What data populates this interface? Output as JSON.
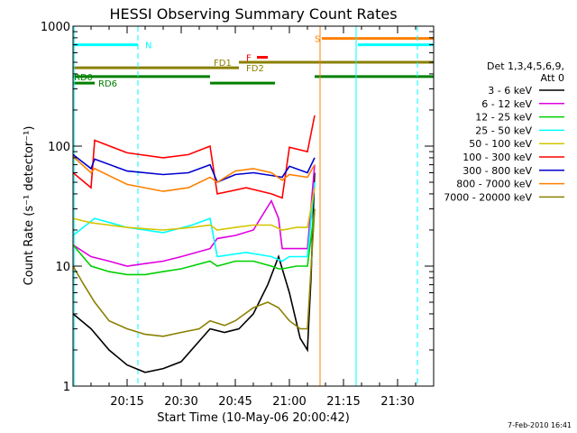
{
  "chart_data": {
    "type": "line",
    "title": "HESSI Observing Summary Count Rates",
    "xlabel": "Start Time (10-May-06 20:00:42)",
    "ylabel": "Count Rate (s⁻¹ detector⁻¹)",
    "y_scale": "log",
    "ylim": [
      1,
      1000
    ],
    "xlim_minutes": [
      0,
      100
    ],
    "x_ticks": [
      {
        "m": 15,
        "label": "20:15"
      },
      {
        "m": 30,
        "label": "20:30"
      },
      {
        "m": 45,
        "label": "20:45"
      },
      {
        "m": 60,
        "label": "21:00"
      },
      {
        "m": 75,
        "label": "21:15"
      },
      {
        "m": 90,
        "label": "21:30"
      }
    ],
    "y_ticks": [
      {
        "v": 1,
        "label": "1"
      },
      {
        "v": 10,
        "label": "10"
      },
      {
        "v": 100,
        "label": "100"
      },
      {
        "v": 1000,
        "label": "1000"
      }
    ],
    "legend_title": [
      "Det 1,3,4,5,6,9,",
      "Att 0"
    ],
    "legend_position": "right",
    "series": [
      {
        "name": "3 - 6 keV",
        "color": "#000000",
        "segments": [
          [
            [
              0,
              4
            ],
            [
              5,
              3
            ],
            [
              10,
              2
            ],
            [
              15,
              1.5
            ],
            [
              20,
              1.3
            ],
            [
              25,
              1.4
            ],
            [
              30,
              1.6
            ],
            [
              38,
              3
            ],
            [
              42,
              2.8
            ],
            [
              46,
              3
            ],
            [
              50,
              4
            ],
            [
              54,
              7
            ],
            [
              57,
              12
            ],
            [
              60,
              6
            ],
            [
              63,
              2.5
            ],
            [
              65,
              2
            ],
            [
              66,
              8
            ],
            [
              67,
              60
            ]
          ]
        ]
      },
      {
        "name": "6 - 12 keV",
        "color": "#e000e0",
        "segments": [
          [
            [
              0,
              15
            ],
            [
              5,
              12
            ],
            [
              10,
              11
            ],
            [
              15,
              10
            ],
            [
              20,
              10.5
            ],
            [
              25,
              11
            ],
            [
              30,
              12
            ],
            [
              38,
              14
            ],
            [
              40,
              17
            ],
            [
              45,
              18
            ],
            [
              50,
              20
            ],
            [
              53,
              28
            ],
            [
              55,
              35
            ],
            [
              57,
              25
            ],
            [
              58,
              14
            ],
            [
              60,
              14
            ],
            [
              65,
              14
            ],
            [
              67,
              70
            ]
          ]
        ]
      },
      {
        "name": "12 - 25 keV",
        "color": "#00d000",
        "segments": [
          [
            [
              0,
              15
            ],
            [
              5,
              10
            ],
            [
              10,
              9
            ],
            [
              15,
              8.5
            ],
            [
              20,
              8.5
            ],
            [
              25,
              9
            ],
            [
              30,
              9.5
            ],
            [
              38,
              11
            ],
            [
              40,
              10
            ],
            [
              45,
              11
            ],
            [
              50,
              11
            ],
            [
              55,
              10
            ],
            [
              57,
              9.5
            ],
            [
              58,
              9.5
            ],
            [
              62,
              10
            ],
            [
              65,
              10
            ],
            [
              67,
              30
            ]
          ]
        ]
      },
      {
        "name": "25 - 50 keV",
        "color": "#00ffff",
        "segments": [
          [
            [
              0,
              18
            ],
            [
              6,
              25
            ],
            [
              15,
              21
            ],
            [
              25,
              19
            ],
            [
              33,
              22
            ],
            [
              38,
              25
            ],
            [
              40,
              12
            ],
            [
              48,
              13
            ],
            [
              55,
              12
            ],
            [
              58,
              11
            ],
            [
              60,
              12
            ],
            [
              65,
              12
            ],
            [
              67,
              50
            ]
          ]
        ]
      },
      {
        "name": "50 - 100 keV",
        "color": "#d4c400",
        "segments": [
          [
            [
              0,
              25
            ],
            [
              5,
              23
            ],
            [
              10,
              22
            ],
            [
              15,
              21
            ],
            [
              25,
              20
            ],
            [
              33,
              21
            ],
            [
              38,
              22
            ],
            [
              40,
              20
            ],
            [
              45,
              21
            ],
            [
              50,
              22
            ],
            [
              55,
              22
            ],
            [
              58,
              20
            ],
            [
              62,
              21
            ],
            [
              65,
              21
            ],
            [
              67,
              45
            ]
          ]
        ]
      },
      {
        "name": "100 - 300 keV",
        "color": "#ff0000",
        "segments": [
          [
            [
              0,
              60
            ],
            [
              5,
              45
            ],
            [
              6,
              112
            ],
            [
              15,
              88
            ],
            [
              25,
              80
            ],
            [
              32,
              85
            ],
            [
              38,
              100
            ],
            [
              40,
              40
            ],
            [
              48,
              45
            ],
            [
              55,
              40
            ],
            [
              58,
              37
            ],
            [
              60,
              98
            ],
            [
              65,
              90
            ],
            [
              67,
              180
            ]
          ]
        ]
      },
      {
        "name": "300 - 800 keV",
        "color": "#0000d0",
        "segments": [
          [
            [
              0,
              85
            ],
            [
              5,
              65
            ],
            [
              6,
              78
            ],
            [
              15,
              62
            ],
            [
              25,
              58
            ],
            [
              32,
              60
            ],
            [
              38,
              70
            ],
            [
              40,
              50
            ],
            [
              45,
              58
            ],
            [
              50,
              60
            ],
            [
              55,
              57
            ],
            [
              58,
              55
            ],
            [
              60,
              68
            ],
            [
              65,
              60
            ],
            [
              67,
              80
            ]
          ]
        ]
      },
      {
        "name": "800 - 7000 keV",
        "color": "#ff8000",
        "segments": [
          [
            [
              0,
              82
            ],
            [
              5,
              60
            ],
            [
              6,
              65
            ],
            [
              15,
              48
            ],
            [
              25,
              42
            ],
            [
              32,
              45
            ],
            [
              38,
              55
            ],
            [
              40,
              50
            ],
            [
              45,
              62
            ],
            [
              50,
              65
            ],
            [
              55,
              60
            ],
            [
              58,
              52
            ],
            [
              60,
              58
            ],
            [
              65,
              55
            ],
            [
              67,
              70
            ]
          ]
        ]
      },
      {
        "name": "7000 - 20000 keV",
        "color": "#8a8000",
        "segments": [
          [
            [
              0,
              10
            ],
            [
              3,
              7
            ],
            [
              6,
              5
            ],
            [
              10,
              3.5
            ],
            [
              15,
              3
            ],
            [
              20,
              2.7
            ],
            [
              25,
              2.6
            ],
            [
              30,
              2.8
            ],
            [
              35,
              3
            ],
            [
              38,
              3.5
            ],
            [
              42,
              3.2
            ],
            [
              45,
              3.5
            ],
            [
              50,
              4.5
            ],
            [
              54,
              5
            ],
            [
              57,
              4.5
            ],
            [
              60,
              3.5
            ],
            [
              63,
              3
            ],
            [
              65,
              3
            ],
            [
              67,
              30
            ]
          ]
        ]
      }
    ],
    "flag_bars": [
      {
        "label": "N",
        "color": "#00ffff",
        "y_value": 700,
        "segments": [
          [
            0,
            18
          ],
          [
            79,
            100
          ]
        ]
      },
      {
        "label": "S",
        "color": "#ff8000",
        "y_value": 790,
        "segments": [
          [
            69,
            100
          ]
        ]
      },
      {
        "label": "F",
        "color": "#ff0000",
        "y_value": 550,
        "segments": [
          [
            51,
            54
          ]
        ]
      },
      {
        "label": "FD1",
        "color": "#8a8000",
        "y_value": 500,
        "segments": [
          [
            46,
            100
          ]
        ]
      },
      {
        "label": "FD2",
        "color": "#8a8000",
        "y_value": 450,
        "segments": [
          [
            0,
            46
          ]
        ]
      },
      {
        "label": "RD0",
        "color": "#008000",
        "y_value": 380,
        "segments": [
          [
            0,
            38
          ],
          [
            67,
            100
          ]
        ]
      },
      {
        "label": "RD6",
        "color": "#008000",
        "y_value": 335,
        "segments": [
          [
            0,
            6
          ],
          [
            38,
            56
          ]
        ]
      }
    ],
    "vertical_lines": [
      {
        "m": 0.3,
        "color": "#00ffff",
        "style": "solid"
      },
      {
        "m": 18,
        "color": "#00ffff",
        "style": "dashed"
      },
      {
        "m": 68.5,
        "color": "#ff8000",
        "style": "solid"
      },
      {
        "m": 78.5,
        "color": "#00ffff",
        "style": "solid"
      },
      {
        "m": 95.5,
        "color": "#ff8000",
        "style": "dashed"
      },
      {
        "m": 95.5,
        "color": "#00ffff",
        "style": "dashed"
      }
    ],
    "footer_date": "7-Feb-2010 16:41"
  }
}
